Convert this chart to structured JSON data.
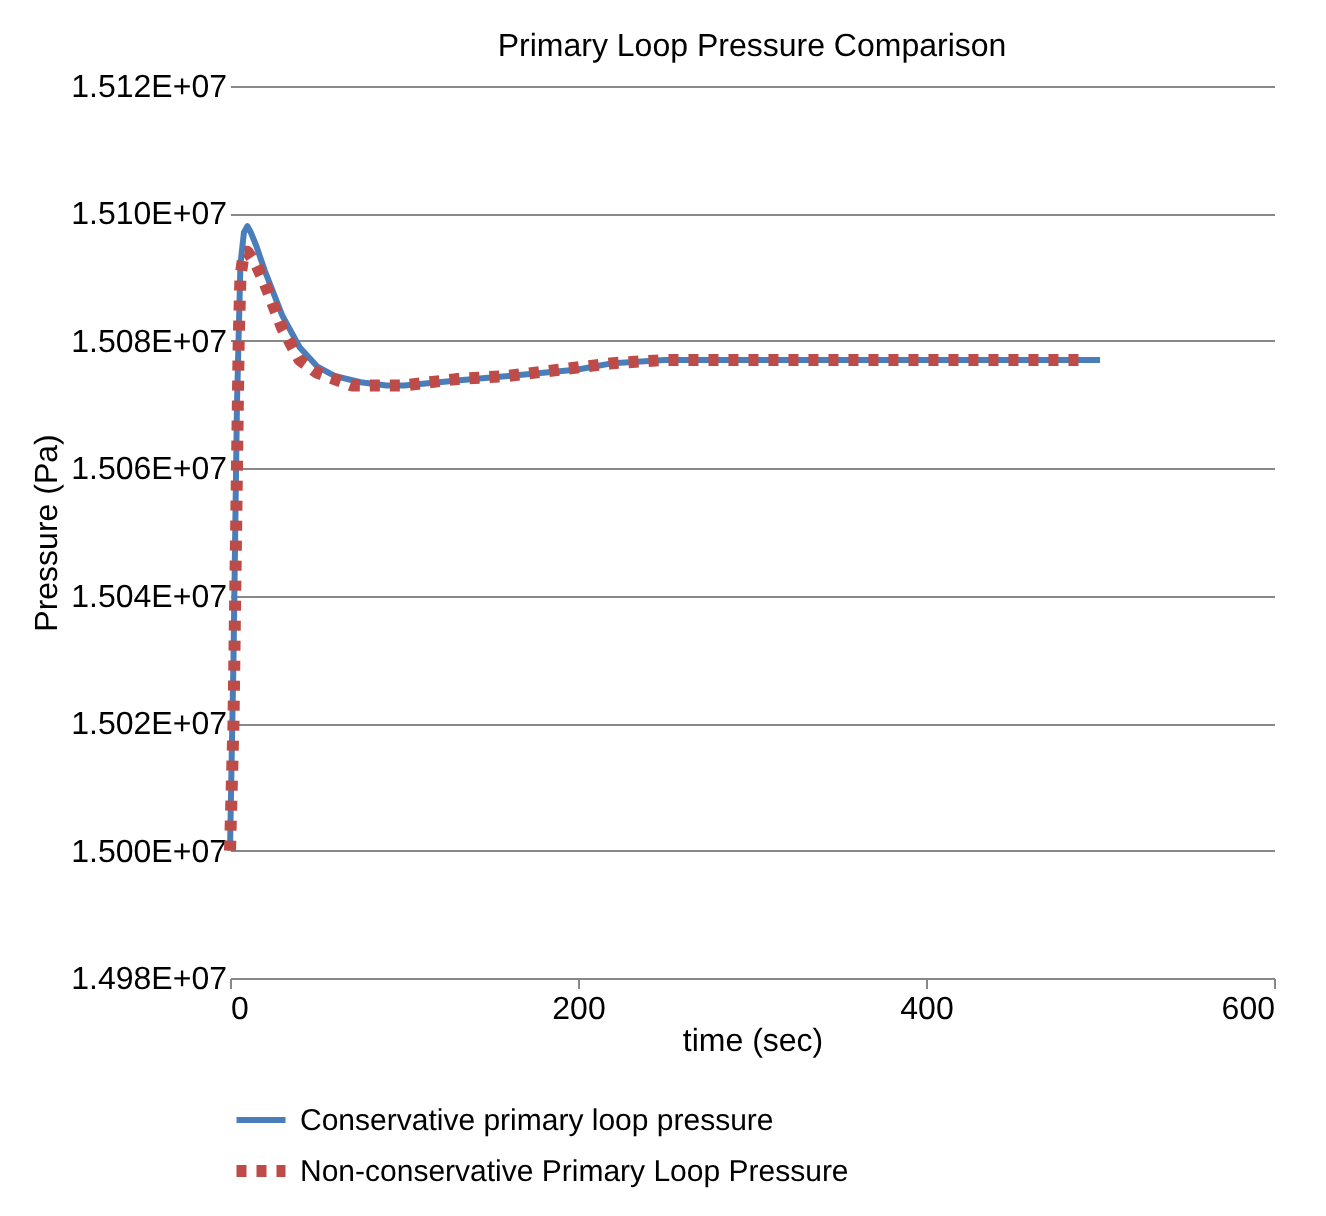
{
  "chart_data": {
    "type": "line",
    "title": "Primary Loop Pressure Comparison",
    "xlabel": "time (sec)",
    "ylabel": "Pressure (Pa)",
    "xlim": [
      0,
      600
    ],
    "xticks": [
      0,
      200,
      400,
      600
    ],
    "ylim": [
      14980000,
      15120000
    ],
    "yticks": [
      {
        "value": 14980000,
        "label": "1.498E+07"
      },
      {
        "value": 15000000,
        "label": "1.500E+07"
      },
      {
        "value": 15020000,
        "label": "1.502E+07"
      },
      {
        "value": 15040000,
        "label": "1.504E+07"
      },
      {
        "value": 15060000,
        "label": "1.506E+07"
      },
      {
        "value": 15080000,
        "label": "1.508E+07"
      },
      {
        "value": 15100000,
        "label": "1.510E+07"
      },
      {
        "value": 15120000,
        "label": "1.512E+07"
      }
    ],
    "grid": "y",
    "legend": "bottom",
    "series": [
      {
        "name": "Conservative primary loop pressure",
        "color": "#4a7ebb",
        "line_style": "solid",
        "x": [
          0,
          2,
          4,
          6,
          8,
          10,
          12,
          15,
          20,
          30,
          40,
          50,
          60,
          75,
          90,
          100,
          120,
          140,
          160,
          180,
          200,
          220,
          250,
          300,
          350,
          400,
          450,
          500
        ],
        "values": [
          15000000,
          15030000,
          15070000,
          15092000,
          15097000,
          15098000,
          15097000,
          15095000,
          15091000,
          15084000,
          15079000,
          15076000,
          15074500,
          15073500,
          15073000,
          15073000,
          15073500,
          15074000,
          15074500,
          15075000,
          15075500,
          15076500,
          15077000,
          15077000,
          15077000,
          15077000,
          15077000,
          15077000
        ]
      },
      {
        "name": "Non-conservative Primary Loop Pressure",
        "color": "#be4b48",
        "line_style": "dotted",
        "x": [
          0,
          1,
          2,
          3,
          4,
          5,
          6,
          8,
          10,
          15,
          20,
          30,
          40,
          50,
          60,
          70,
          80,
          100,
          130,
          160,
          190,
          220,
          250,
          280,
          310,
          340,
          370,
          400,
          430,
          460,
          490
        ],
        "values": [
          15000000,
          15010000,
          15020000,
          15040000,
          15060000,
          15080000,
          15090000,
          15094000,
          15094000,
          15092000,
          15089000,
          15082000,
          15077000,
          15075000,
          15074000,
          15073000,
          15073000,
          15073000,
          15074000,
          15074500,
          15075500,
          15076500,
          15077000,
          15077000,
          15077000,
          15077000,
          15077000,
          15077000,
          15077000,
          15077000,
          15077000
        ]
      }
    ]
  }
}
